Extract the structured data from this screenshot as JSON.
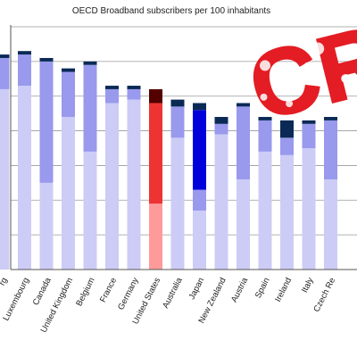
{
  "chart_data": {
    "type": "bar",
    "stacked": true,
    "title": "OECD Broadband subscribers per 100 inhabitants",
    "xlabel": "",
    "ylabel": "",
    "ylim": [
      0,
      35
    ],
    "grid": true,
    "legend": "none",
    "categories": [
      "Netherlands",
      "Luxembourg",
      "Canada",
      "United Kingdom",
      "Belgium",
      "France",
      "Germany",
      "United States",
      "Australia",
      "Japan",
      "New Zealand",
      "Austria",
      "Spain",
      "Ireland",
      "Italy",
      "Czech Republic"
    ],
    "visible_tick_labels": [
      "rg",
      "Luxembourg",
      "Canada",
      "United Kingdom",
      "Belgium",
      "France",
      "Germany",
      "United States",
      "Australia",
      "Japan",
      "New Zealand",
      "Austria",
      "Spain",
      "Ireland",
      "Italy",
      "Czech Re"
    ],
    "highlight_category": "United States",
    "series": [
      {
        "values": [
          26.0,
          26.5,
          12.5,
          22.0,
          17.0,
          24.0,
          24.5,
          9.5,
          19.0,
          8.5,
          19.5,
          13.0,
          17.0,
          16.5,
          17.5,
          13.0
        ]
      },
      {
        "values": [
          4.5,
          4.5,
          17.5,
          6.5,
          12.5,
          2.0,
          1.5,
          14.5,
          4.5,
          3.0,
          1.5,
          10.5,
          4.5,
          2.5,
          3.5,
          8.5
        ]
      },
      {
        "values": [
          0.0,
          0.0,
          0.0,
          0.0,
          0.0,
          0.0,
          0.0,
          0.0,
          0.0,
          11.5,
          0.0,
          0.0,
          0.0,
          0.0,
          0.0,
          0.0
        ]
      },
      {
        "values": [
          0.5,
          0.5,
          0.5,
          0.5,
          0.5,
          0.5,
          0.5,
          2.0,
          1.0,
          1.0,
          1.0,
          0.5,
          0.5,
          2.5,
          0.5,
          0.5
        ]
      }
    ],
    "colors": {
      "default": [
        "#ccccf6",
        "#9999ee",
        "#0000dd",
        "#0a2a55"
      ],
      "highlight": [
        "#ff9a9a",
        "#ee3333",
        "#ee3333",
        "#550000"
      ]
    },
    "stamp_text": "CRAP",
    "stamp_color": "#e41c24"
  }
}
